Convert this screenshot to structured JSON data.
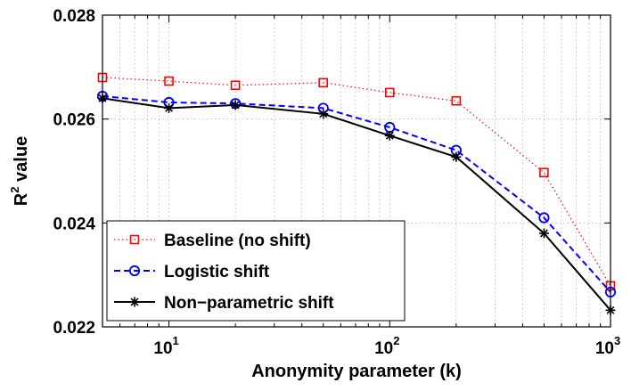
{
  "chart_data": {
    "type": "line",
    "xscale": "log",
    "xlim": [
      5,
      1000
    ],
    "ylim": [
      0.022,
      0.028
    ],
    "grid": true,
    "xlabel": "Anonymity parameter (k)",
    "ylabel_base": "R",
    "ylabel_sup": "2",
    "ylabel_rest": " value",
    "y_ticks": [
      {
        "value": 0.022,
        "label": "0.022"
      },
      {
        "value": 0.024,
        "label": "0.024"
      },
      {
        "value": 0.026,
        "label": "0.026"
      },
      {
        "value": 0.028,
        "label": "0.028"
      }
    ],
    "x_ticks": [
      {
        "value": 10,
        "base": "10",
        "exp": "1"
      },
      {
        "value": 100,
        "base": "10",
        "exp": "2"
      },
      {
        "value": 1000,
        "base": "10",
        "exp": "3"
      }
    ],
    "x": [
      5,
      10,
      20,
      50,
      100,
      200,
      500,
      1000
    ],
    "legend_position": "bottom-left",
    "series": [
      {
        "name": "Baseline (no shift)",
        "color": "#ff0000",
        "linestyle": "dotted",
        "marker": "square",
        "values": [
          0.0268,
          0.02673,
          0.02665,
          0.0267,
          0.02651,
          0.02635,
          0.02497,
          0.02279
        ]
      },
      {
        "name": "Logistic shift",
        "color": "#0000ff",
        "linestyle": "dashed",
        "marker": "circle",
        "values": [
          0.02644,
          0.02632,
          0.0263,
          0.02621,
          0.02584,
          0.0254,
          0.0241,
          0.02267
        ]
      },
      {
        "name": "Non−parametric shift",
        "color": "#000000",
        "linestyle": "solid",
        "marker": "asterisk",
        "values": [
          0.0264,
          0.02621,
          0.02627,
          0.0261,
          0.02568,
          0.02527,
          0.0238,
          0.02232
        ]
      }
    ]
  }
}
